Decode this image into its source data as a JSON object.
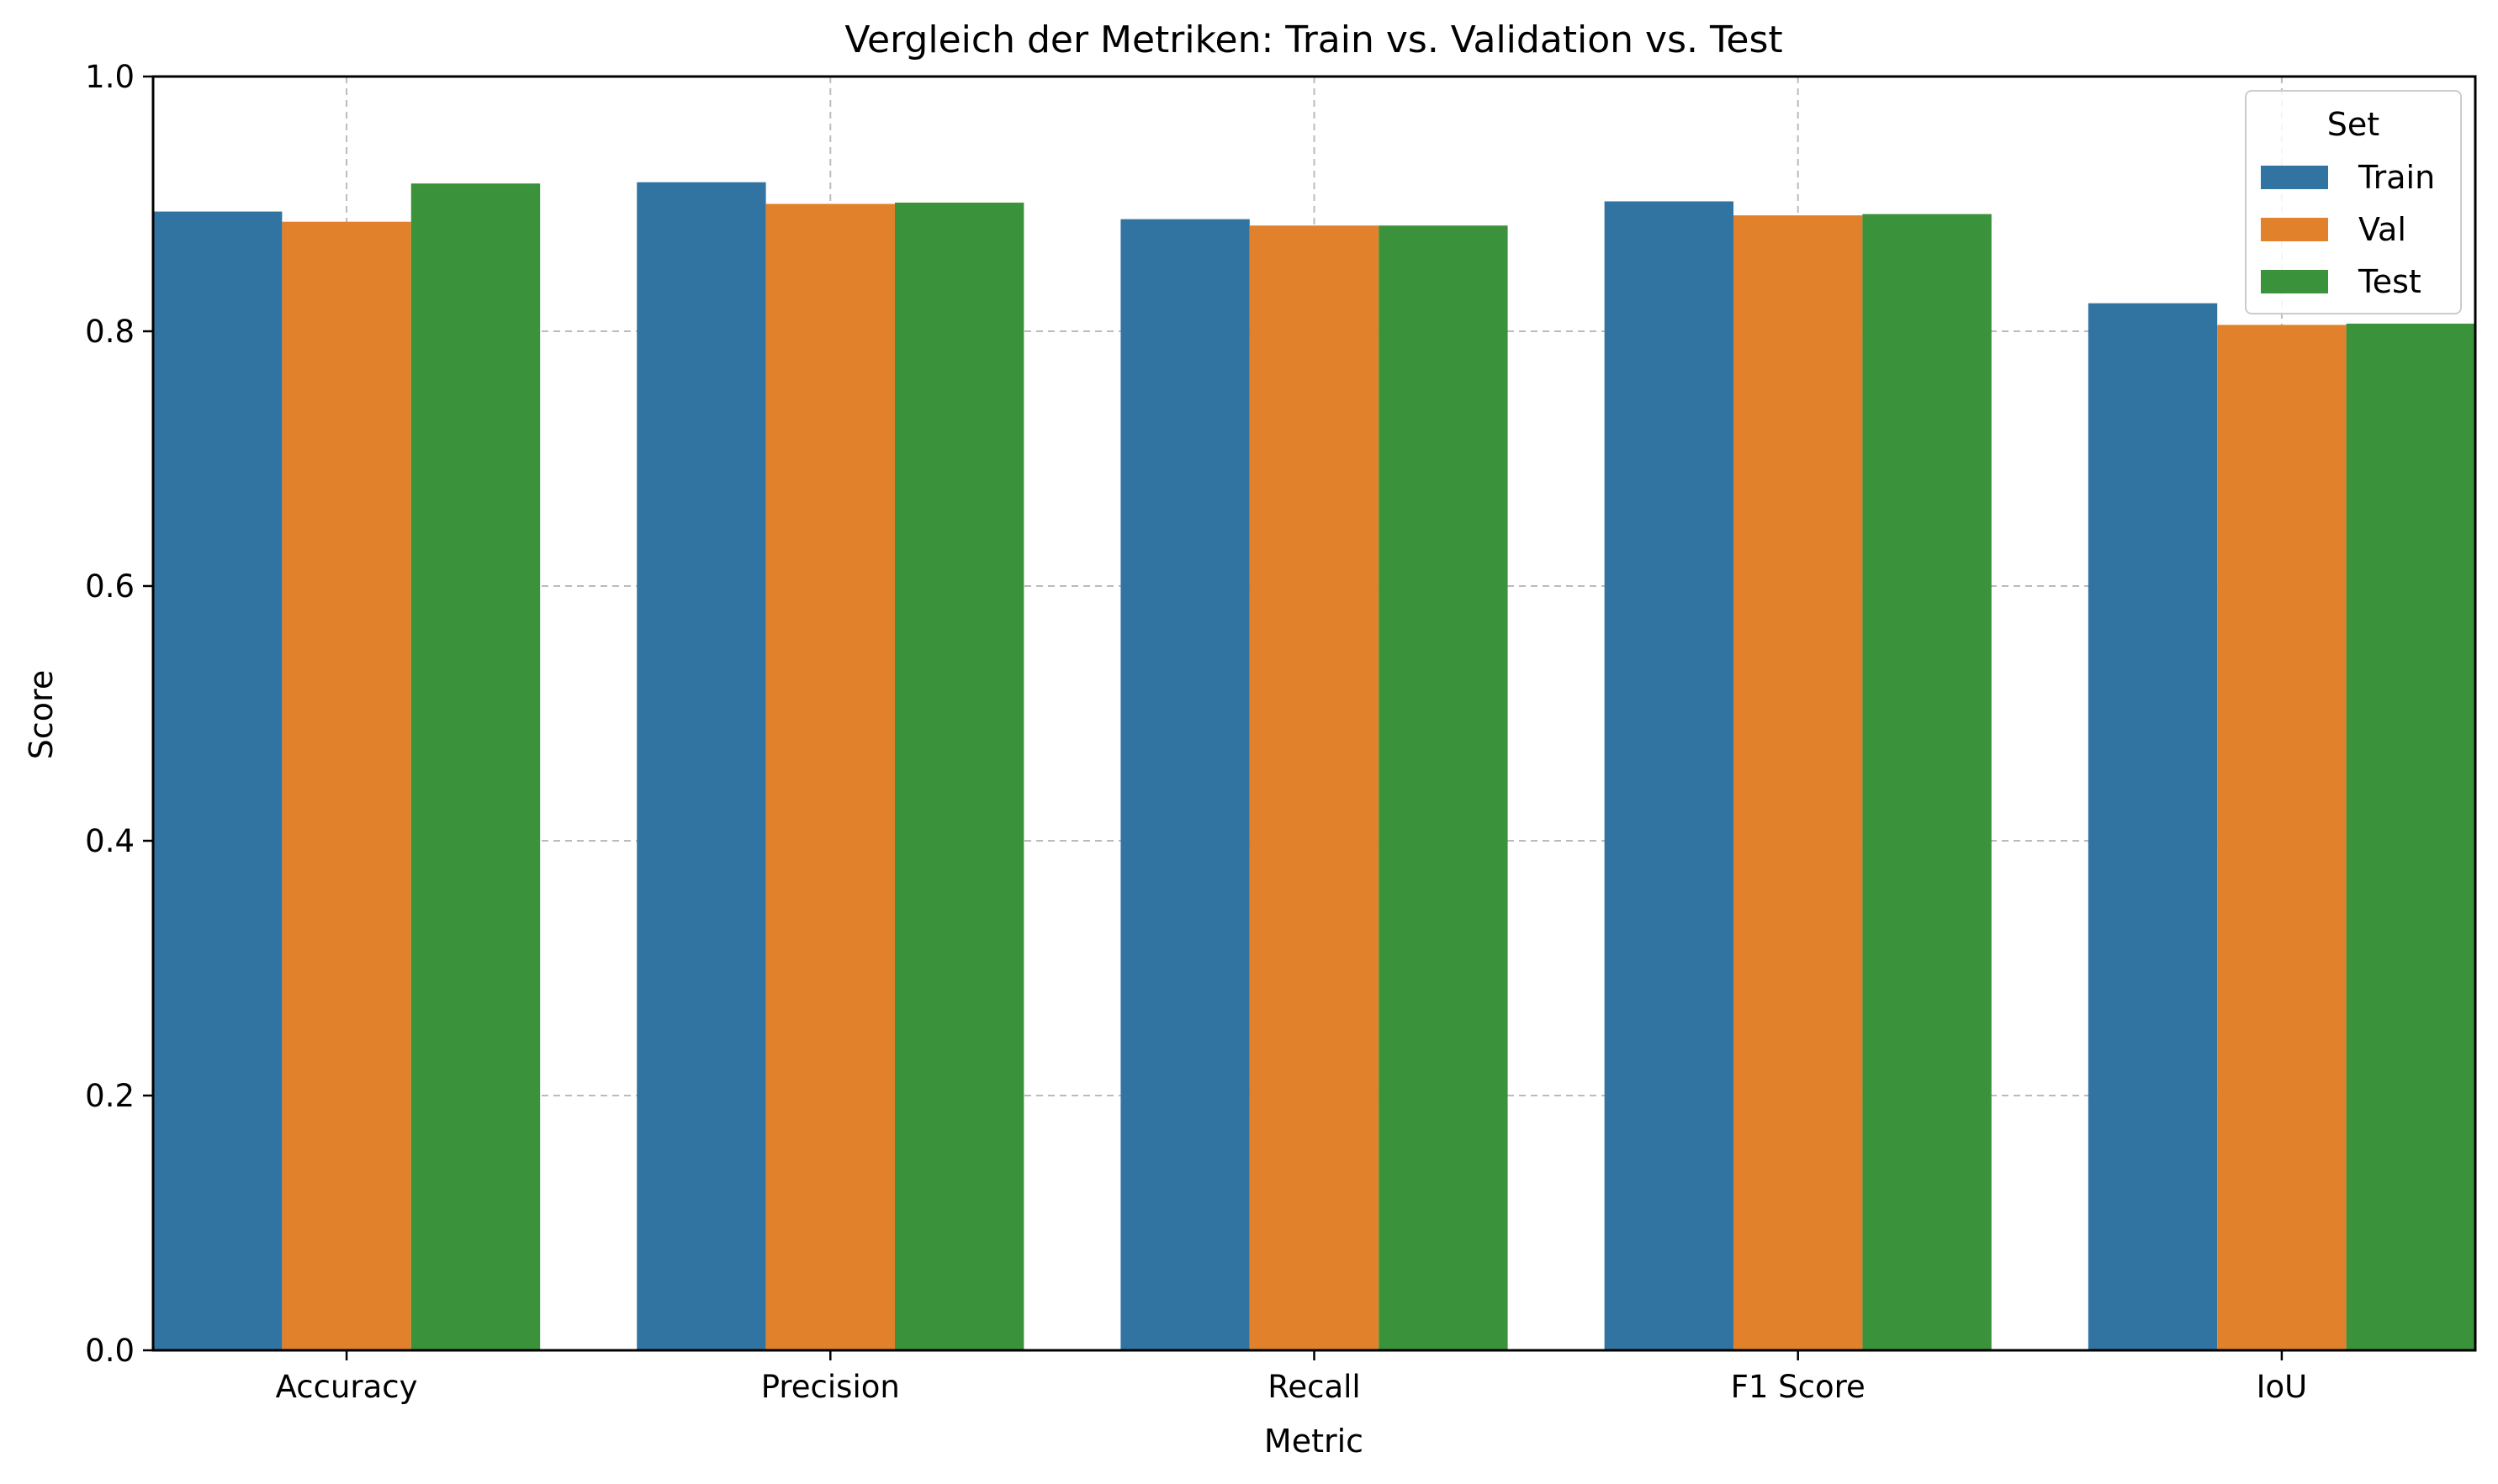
{
  "chart_data": {
    "type": "bar",
    "title": "Vergleich der Metriken: Train vs. Validation vs. Test",
    "xlabel": "Metric",
    "ylabel": "Score",
    "categories": [
      "Accuracy",
      "Precision",
      "Recall",
      "F1 Score",
      "IoU"
    ],
    "series": [
      {
        "name": "Train",
        "color": "#3274a1",
        "values": [
          0.894,
          0.917,
          0.888,
          0.902,
          0.822
        ]
      },
      {
        "name": "Val",
        "color": "#e1812c",
        "values": [
          0.886,
          0.9,
          0.883,
          0.891,
          0.805
        ]
      },
      {
        "name": "Test",
        "color": "#3a923a",
        "values": [
          0.916,
          0.901,
          0.883,
          0.892,
          0.806
        ]
      }
    ],
    "ylim": [
      0.0,
      1.0
    ],
    "yticks": [
      0.0,
      0.2,
      0.4,
      0.6,
      0.8,
      1.0
    ],
    "ytick_labels": [
      "0.0",
      "0.2",
      "0.4",
      "0.6",
      "0.8",
      "1.0"
    ],
    "grid": true,
    "legend": {
      "title": "Set",
      "placement": "top-right"
    }
  }
}
